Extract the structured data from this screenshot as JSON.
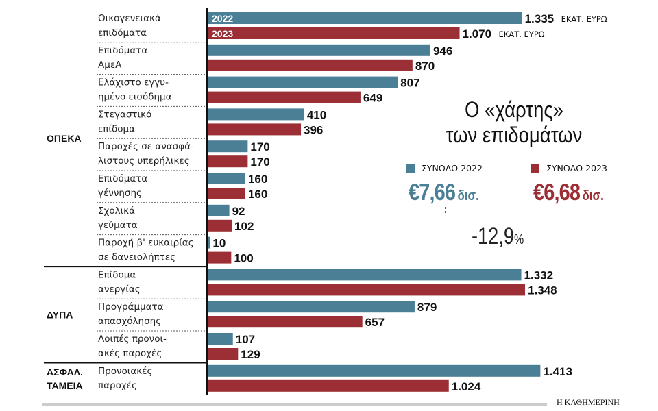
{
  "chart_data": {
    "type": "bar",
    "orientation": "horizontal",
    "title": "Ο «χάρτης» των επιδομάτων",
    "unit": "ΕΚΑΤ. ΕΥΡΩ",
    "series_colors": {
      "2022": "#4a7f96",
      "2023": "#9b2f35"
    },
    "series": [
      {
        "name": "2022"
      },
      {
        "name": "2023"
      }
    ],
    "groups": [
      {
        "name": "ΟΠΕΚΑ",
        "rows": [
          0,
          1,
          2,
          3,
          4,
          5,
          6,
          7
        ]
      },
      {
        "name": "ΔΥΠΑ",
        "rows": [
          8,
          9,
          10
        ]
      },
      {
        "name": "ΑΣΦΑΛ. ΤΑΜΕΙΑ",
        "lines": [
          "ΑΣΦΑΛ.",
          "ΤΑΜΕΙΑ"
        ],
        "rows": [
          11
        ]
      }
    ],
    "categories": [
      {
        "lines": [
          "Οικογενειακά",
          "επιδόματα"
        ],
        "v2022": 1335,
        "v2023": 1070
      },
      {
        "lines": [
          "Επιδόματα",
          "ΑμεΑ"
        ],
        "v2022": 946,
        "v2023": 870
      },
      {
        "lines": [
          "Ελάχιστο εγγυ-",
          "ημένο εισόδημα"
        ],
        "v2022": 807,
        "v2023": 649
      },
      {
        "lines": [
          "Στεγαστικό",
          "επίδομα"
        ],
        "v2022": 410,
        "v2023": 396
      },
      {
        "lines": [
          "Παροχές σε ανασφά-",
          "λιστους υπερήλικες"
        ],
        "v2022": 170,
        "v2023": 170
      },
      {
        "lines": [
          "Επιδόματα",
          "γέννησης"
        ],
        "v2022": 160,
        "v2023": 160
      },
      {
        "lines": [
          "Σχολικά",
          "γεύματα"
        ],
        "v2022": 92,
        "v2023": 102
      },
      {
        "lines": [
          "Παροχή β' ευκαιρίας",
          "σε δανειολήπτες"
        ],
        "v2022": 10,
        "v2023": 100
      },
      {
        "lines": [
          "Επίδομα",
          "ανεργίας"
        ],
        "v2022": 1332,
        "v2023": 1348
      },
      {
        "lines": [
          "Προγράμματα",
          "απασχόλησης"
        ],
        "v2022": 879,
        "v2023": 657
      },
      {
        "lines": [
          "Λοιπές προνοι-",
          "ακές παροχές"
        ],
        "v2022": 107,
        "v2023": 129
      },
      {
        "lines": [
          "Προνοιακές",
          "παροχές"
        ],
        "v2022": 1413,
        "v2023": 1024
      }
    ]
  },
  "title_lines": [
    "Ο «χάρτης»",
    "των επιδομάτων"
  ],
  "legend": {
    "total_2022_label": "ΣΥΝΟΛΟ 2022",
    "total_2023_label": "ΣΥΝΟΛΟ 2023"
  },
  "totals": {
    "v2022": "€7,66",
    "v2023": "€6,68",
    "unit": "δισ."
  },
  "change": {
    "value": "-12,9",
    "unit": "%"
  },
  "source": "Η ΚΑΘΗΜΕΡΙΝΗ"
}
